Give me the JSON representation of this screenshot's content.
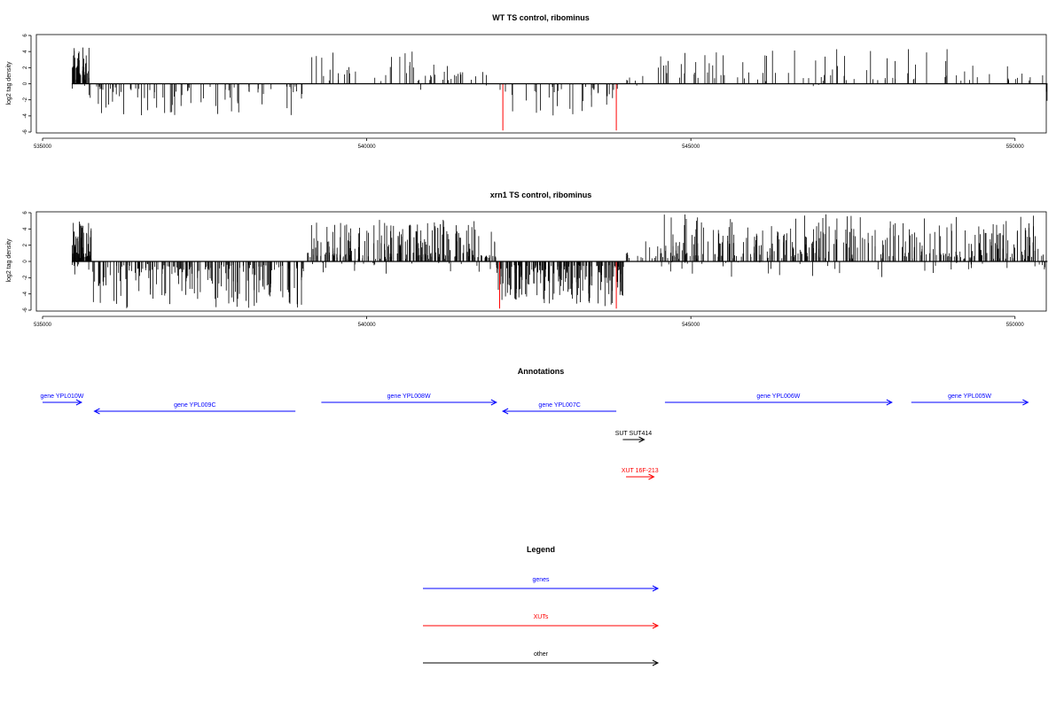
{
  "chart_data": [
    {
      "type": "bar",
      "title": "WT TS control, ribominus",
      "ylabel": "log2 tag density",
      "xlabel": "",
      "xlim": [
        535000,
        550400
      ],
      "ylim": [
        -6,
        6
      ],
      "x_ticks": [
        535000,
        540000,
        545000,
        550000
      ],
      "x_tick_labels": [
        "535000",
        "540000",
        "545000",
        "550000"
      ],
      "y_ticks": [
        -6,
        -4,
        -2,
        0,
        2,
        4,
        6
      ],
      "y_tick_labels": [
        "-6",
        "-4",
        "-2",
        "0",
        "2",
        "4",
        "6"
      ],
      "bar_color": "#000000",
      "highlight_color": "#ff0000",
      "data_range": [
        535450,
        550500
      ],
      "segments": [
        {
          "from": 535450,
          "to": 535720,
          "sign": 1,
          "density": 55,
          "max": 4.5
        },
        {
          "from": 535720,
          "to": 539050,
          "sign": -1,
          "density": 80,
          "max": 4.0
        },
        {
          "from": 539050,
          "to": 540700,
          "sign": 1,
          "density": 25,
          "max": 4.0
        },
        {
          "from": 540700,
          "to": 541300,
          "sign": 1,
          "density": 14,
          "max": 3.0
        },
        {
          "from": 541300,
          "to": 541850,
          "sign": 1,
          "density": 12,
          "max": 2.2
        },
        {
          "from": 542050,
          "to": 543950,
          "sign": -1,
          "density": 35,
          "max": 4.0
        },
        {
          "from": 544000,
          "to": 544300,
          "sign": 1,
          "density": 6,
          "max": 1.0
        },
        {
          "from": 544500,
          "to": 550500,
          "sign": 1,
          "density": 90,
          "max": 4.3
        },
        {
          "from": 550480,
          "to": 550500,
          "sign": -1,
          "density": 3,
          "max": 2.2
        }
      ],
      "negatives_in_positive": 0.05,
      "highlights": [
        {
          "x": 542100,
          "value": -5.8
        },
        {
          "x": 543850,
          "value": -5.8
        }
      ]
    },
    {
      "type": "bar",
      "title": "xrn1 TS control, ribominus",
      "ylabel": "log2 tag density",
      "xlabel": "",
      "xlim": [
        535000,
        550400
      ],
      "ylim": [
        -6,
        6
      ],
      "x_ticks": [
        535000,
        540000,
        545000,
        550000
      ],
      "x_tick_labels": [
        "535000",
        "540000",
        "545000",
        "550000"
      ],
      "y_ticks": [
        -6,
        -4,
        -2,
        0,
        2,
        4,
        6
      ],
      "y_tick_labels": [
        "-6",
        "-4",
        "-2",
        "0",
        "2",
        "4",
        "6"
      ],
      "bar_color": "#000000",
      "highlight_color": "#ff0000",
      "data_range": [
        535450,
        550500
      ],
      "segments": [
        {
          "from": 535450,
          "to": 535750,
          "sign": 1,
          "density": 90,
          "max": 5.0
        },
        {
          "from": 535750,
          "to": 539050,
          "sign": -1,
          "density": 200,
          "max": 5.8
        },
        {
          "from": 539050,
          "to": 542000,
          "sign": 1,
          "density": 230,
          "max": 5.2
        },
        {
          "from": 542000,
          "to": 543950,
          "sign": -1,
          "density": 180,
          "max": 5.6
        },
        {
          "from": 543950,
          "to": 544550,
          "sign": 1,
          "density": 20,
          "max": 2.5
        },
        {
          "from": 544550,
          "to": 550450,
          "sign": 1,
          "density": 360,
          "max": 5.8
        },
        {
          "from": 550350,
          "to": 550500,
          "sign": -1,
          "density": 5,
          "max": 3.8
        }
      ],
      "negatives_in_positive": 0.1,
      "highlights": [
        {
          "x": 542050,
          "value": -5.8
        },
        {
          "x": 543850,
          "value": -5.8
        }
      ]
    }
  ],
  "annotations": {
    "title": "Annotations",
    "features": [
      {
        "label": "gene YPL010W",
        "start": 535000,
        "end": 535600,
        "strand": "+",
        "color": "#0000ff",
        "row": 0
      },
      {
        "label": "gene YPL009C",
        "start": 535800,
        "end": 538900,
        "strand": "-",
        "color": "#0000ff",
        "row": 1
      },
      {
        "label": "gene YPL008W",
        "start": 539300,
        "end": 542000,
        "strand": "+",
        "color": "#0000ff",
        "row": 0
      },
      {
        "label": "gene YPL007C",
        "start": 542100,
        "end": 543850,
        "strand": "-",
        "color": "#0000ff",
        "row": 1
      },
      {
        "label": "gene YPL006W",
        "start": 544600,
        "end": 548100,
        "strand": "+",
        "color": "#0000ff",
        "row": 0
      },
      {
        "label": "gene YPL005W",
        "start": 548400,
        "end": 550200,
        "strand": "+",
        "color": "#0000ff",
        "row": 0
      },
      {
        "label": "SUT SUT414",
        "start": 543950,
        "end": 544280,
        "strand": "+",
        "color": "#000000",
        "row": 3
      },
      {
        "label": "XUT 16F-213",
        "start": 544000,
        "end": 544430,
        "strand": "+",
        "color": "#ff0000",
        "row": 5
      }
    ]
  },
  "legend": {
    "title": "Legend",
    "items": [
      {
        "label": "genes",
        "color": "#0000ff"
      },
      {
        "label": "XUTs",
        "color": "#ff0000"
      },
      {
        "label": "other",
        "color": "#000000"
      }
    ]
  }
}
